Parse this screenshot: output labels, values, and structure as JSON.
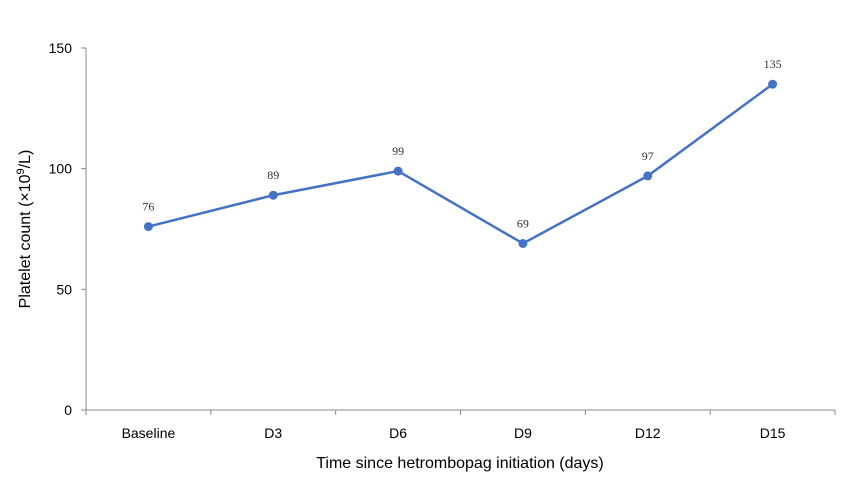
{
  "chart_data": {
    "type": "line",
    "title": "",
    "xlabel": "Time since hetrombopag initiation (days)",
    "ylabel_main": "Platelet count (×10",
    "ylabel_sup": "9",
    "ylabel_end": "/L)",
    "categories": [
      "Baseline",
      "D3",
      "D6",
      "D9",
      "D12",
      "D15"
    ],
    "values": [
      76,
      89,
      99,
      69,
      97,
      135
    ],
    "yticks": [
      0,
      50,
      100,
      150
    ],
    "ylim": [
      0,
      150
    ],
    "grid": false,
    "legend": "none",
    "line_color": "#4472C4"
  }
}
